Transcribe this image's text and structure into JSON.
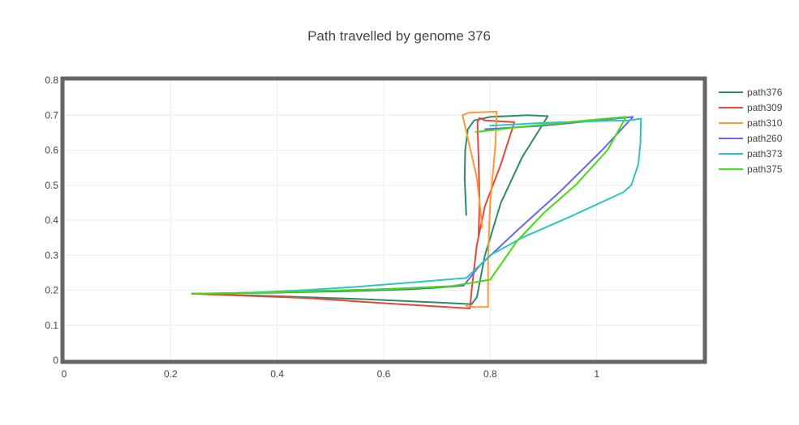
{
  "chart_data": {
    "type": "line",
    "title": "Path travelled by genome 376",
    "xlabel": "",
    "ylabel": "",
    "xlim": [
      0,
      1.2
    ],
    "ylim": [
      0,
      0.8
    ],
    "x_ticks": [
      0,
      0.2,
      0.4,
      0.6,
      0.8,
      1
    ],
    "y_ticks": [
      0,
      0.1,
      0.2,
      0.3,
      0.4,
      0.5,
      0.6,
      0.7,
      0.8
    ],
    "x_tick_labels": [
      "0",
      "0.2",
      "0.4",
      "0.6",
      "0.8",
      "1"
    ],
    "y_tick_labels": [
      "0",
      "0.1",
      "0.2",
      "0.3",
      "0.4",
      "0.5",
      "0.6",
      "0.7",
      "0.8"
    ],
    "grid": true,
    "legend_position": "right",
    "series": [
      {
        "name": "path376",
        "color": "#2e8b6a",
        "points": [
          [
            0.755,
            0.415
          ],
          [
            0.752,
            0.52
          ],
          [
            0.753,
            0.6
          ],
          [
            0.758,
            0.66
          ],
          [
            0.77,
            0.685
          ],
          [
            0.8,
            0.695
          ],
          [
            0.87,
            0.7
          ],
          [
            0.908,
            0.697
          ],
          [
            0.86,
            0.58
          ],
          [
            0.82,
            0.45
          ],
          [
            0.79,
            0.3
          ],
          [
            0.775,
            0.18
          ],
          [
            0.765,
            0.16
          ],
          [
            0.7,
            0.165
          ],
          [
            0.55,
            0.175
          ],
          [
            0.4,
            0.183
          ],
          [
            0.24,
            0.19
          ],
          [
            0.4,
            0.193
          ],
          [
            0.55,
            0.198
          ],
          [
            0.65,
            0.203
          ],
          [
            0.7,
            0.207
          ],
          [
            0.748,
            0.213
          ]
        ]
      },
      {
        "name": "path309",
        "color": "#e8453c",
        "points": [
          [
            0.778,
            0.355
          ],
          [
            0.78,
            0.45
          ],
          [
            0.778,
            0.58
          ],
          [
            0.776,
            0.68
          ],
          [
            0.78,
            0.692
          ],
          [
            0.79,
            0.685
          ],
          [
            0.845,
            0.68
          ],
          [
            0.842,
            0.664
          ],
          [
            0.82,
            0.56
          ],
          [
            0.79,
            0.44
          ],
          [
            0.775,
            0.33
          ],
          [
            0.765,
            0.2
          ],
          [
            0.762,
            0.148
          ],
          [
            0.6,
            0.163
          ],
          [
            0.45,
            0.178
          ],
          [
            0.24,
            0.19
          ]
        ]
      },
      {
        "name": "path310",
        "color": "#ff9933",
        "points": [
          [
            0.785,
            0.38
          ],
          [
            0.775,
            0.52
          ],
          [
            0.76,
            0.62
          ],
          [
            0.748,
            0.7
          ],
          [
            0.76,
            0.707
          ],
          [
            0.812,
            0.71
          ],
          [
            0.81,
            0.62
          ],
          [
            0.8,
            0.45
          ],
          [
            0.796,
            0.3
          ],
          [
            0.796,
            0.152
          ],
          [
            0.77,
            0.152
          ],
          [
            0.755,
            0.155
          ]
        ]
      },
      {
        "name": "path260",
        "color": "#6666ee",
        "points": [
          [
            0.79,
            0.66
          ],
          [
            0.9,
            0.67
          ],
          [
            1.0,
            0.685
          ],
          [
            1.068,
            0.695
          ],
          [
            1.01,
            0.6
          ],
          [
            0.93,
            0.48
          ],
          [
            0.85,
            0.37
          ],
          [
            0.78,
            0.27
          ],
          [
            0.75,
            0.213
          ],
          [
            0.6,
            0.203
          ],
          [
            0.45,
            0.197
          ],
          [
            0.3,
            0.191
          ],
          [
            0.24,
            0.19
          ]
        ]
      },
      {
        "name": "path373",
        "color": "#2ec4c4",
        "points": [
          [
            0.8,
            0.67
          ],
          [
            0.9,
            0.678
          ],
          [
            1.0,
            0.683
          ],
          [
            1.06,
            0.685
          ],
          [
            1.083,
            0.69
          ],
          [
            1.082,
            0.62
          ],
          [
            1.078,
            0.56
          ],
          [
            1.065,
            0.5
          ],
          [
            1.05,
            0.48
          ],
          [
            0.95,
            0.41
          ],
          [
            0.86,
            0.35
          ],
          [
            0.8,
            0.3
          ],
          [
            0.755,
            0.235
          ],
          [
            0.65,
            0.222
          ],
          [
            0.55,
            0.21
          ],
          [
            0.45,
            0.2
          ],
          [
            0.35,
            0.193
          ],
          [
            0.24,
            0.19
          ]
        ]
      },
      {
        "name": "path375",
        "color": "#44dd11",
        "points": [
          [
            0.773,
            0.652
          ],
          [
            0.88,
            0.67
          ],
          [
            0.98,
            0.685
          ],
          [
            1.055,
            0.695
          ],
          [
            1.02,
            0.6
          ],
          [
            0.96,
            0.5
          ],
          [
            0.9,
            0.42
          ],
          [
            0.85,
            0.34
          ],
          [
            0.8,
            0.23
          ],
          [
            0.72,
            0.21
          ],
          [
            0.6,
            0.203
          ],
          [
            0.45,
            0.196
          ],
          [
            0.3,
            0.191
          ],
          [
            0.24,
            0.19
          ]
        ]
      }
    ]
  }
}
